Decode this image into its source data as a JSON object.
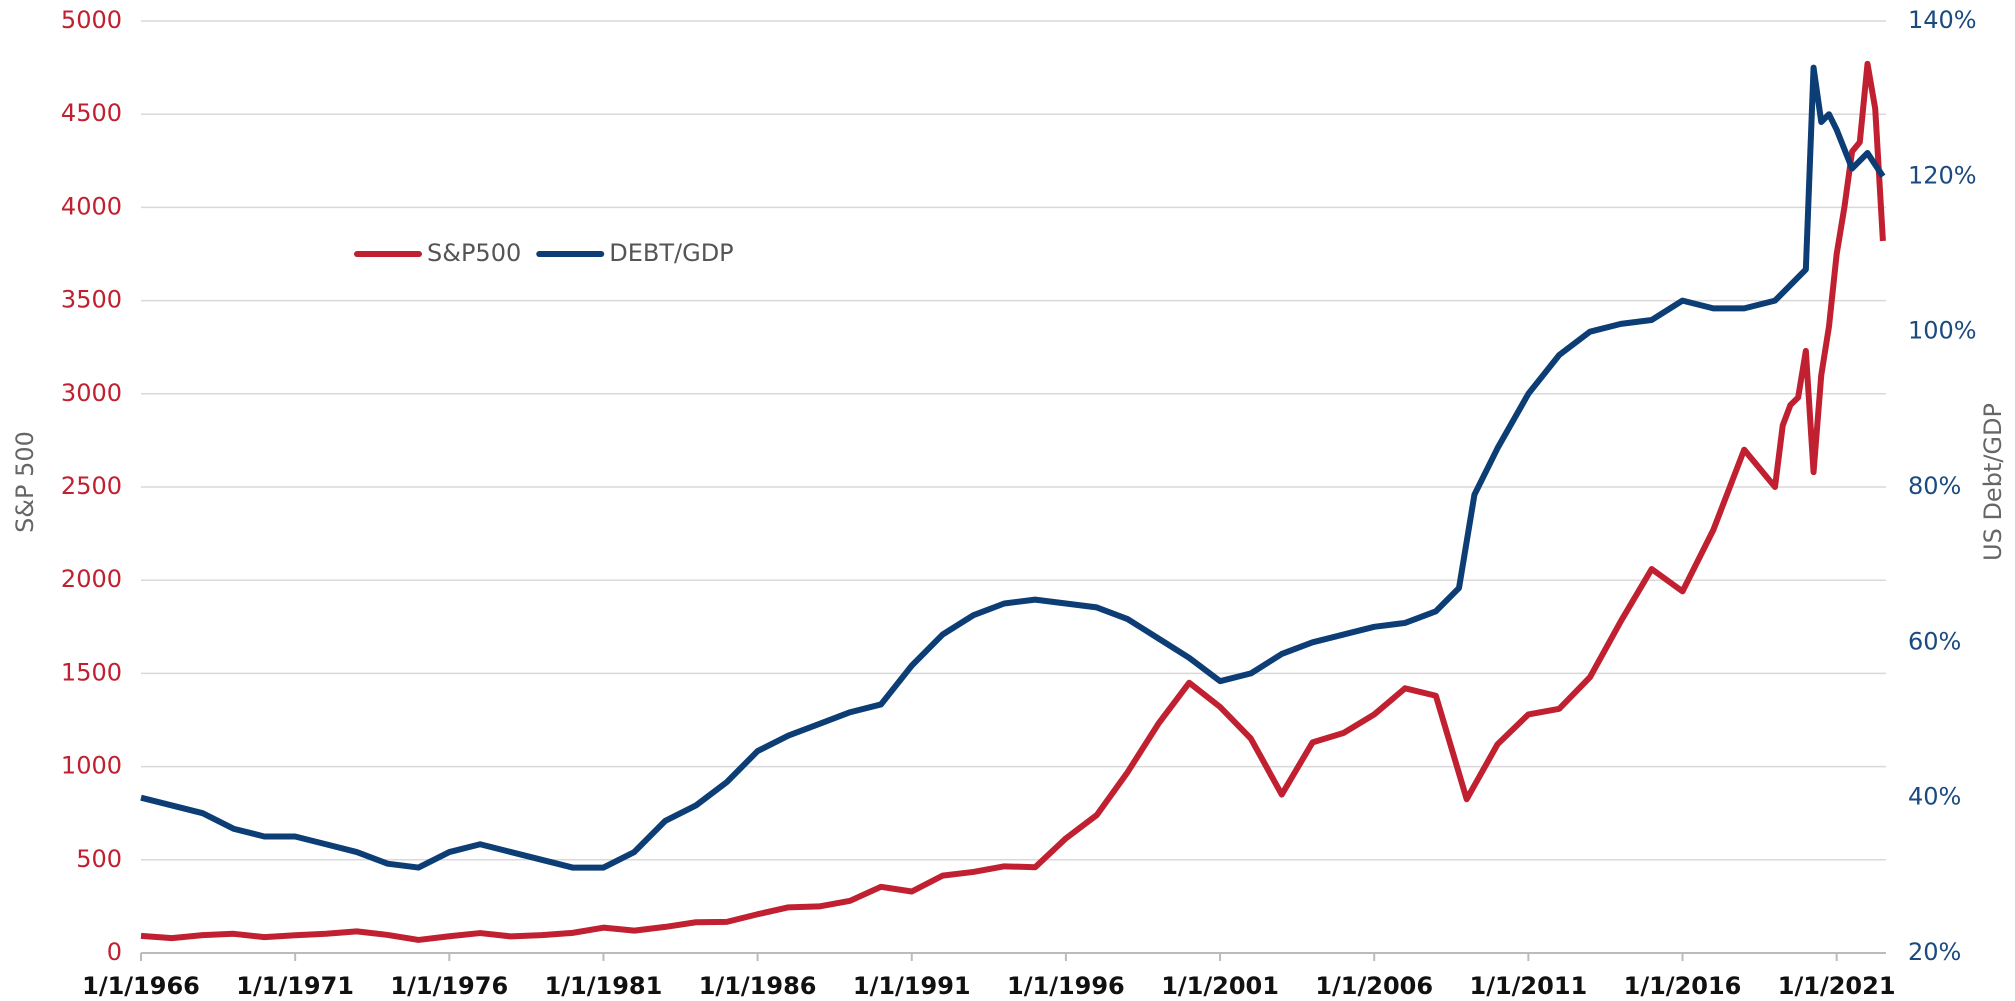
{
  "chart_data": {
    "type": "line",
    "ylabel": "S&P 500",
    "y2label": "US Debt/GDP",
    "xlim": [
      1966,
      2022.6
    ],
    "xticks": [
      {
        "value": 1966,
        "label": "1/1/1966"
      },
      {
        "value": 1971,
        "label": "1/1/1971"
      },
      {
        "value": 1976,
        "label": "1/1/1976"
      },
      {
        "value": 1981,
        "label": "1/1/1981"
      },
      {
        "value": 1986,
        "label": "1/1/1986"
      },
      {
        "value": 1991,
        "label": "1/1/1991"
      },
      {
        "value": 1996,
        "label": "1/1/1996"
      },
      {
        "value": 2001,
        "label": "1/1/2001"
      },
      {
        "value": 2006,
        "label": "1/1/2006"
      },
      {
        "value": 2011,
        "label": "1/1/2011"
      },
      {
        "value": 2016,
        "label": "1/1/2016"
      },
      {
        "value": 2021,
        "label": "1/1/2021"
      }
    ],
    "ylim": [
      0,
      5000
    ],
    "yticks": [
      0,
      500,
      1000,
      1500,
      2000,
      2500,
      3000,
      3500,
      4000,
      4500,
      5000
    ],
    "y2lim": [
      20,
      140
    ],
    "y2ticks": [
      {
        "value": 20,
        "label": "20%"
      },
      {
        "value": 40,
        "label": "40%"
      },
      {
        "value": 60,
        "label": "60%"
      },
      {
        "value": 80,
        "label": "80%"
      },
      {
        "value": 100,
        "label": "100%"
      },
      {
        "value": 120,
        "label": "120%"
      },
      {
        "value": 140,
        "label": "140%"
      }
    ],
    "grid": true,
    "legend": "upper left",
    "series": [
      {
        "name": "S&P500",
        "color": "#c0202f",
        "axis": "y",
        "x": [
          1966,
          1967,
          1968,
          1969,
          1970,
          1971,
          1972,
          1973,
          1974,
          1975,
          1976,
          1977,
          1978,
          1979,
          1980,
          1981,
          1982,
          1983,
          1984,
          1985,
          1986,
          1987,
          1988,
          1989,
          1990,
          1991,
          1992,
          1993,
          1994,
          1995,
          1996,
          1997,
          1998,
          1999,
          2000,
          2001,
          2002,
          2003,
          2004,
          2005,
          2006,
          2007,
          2008,
          2009,
          2010,
          2011,
          2012,
          2013,
          2014,
          2015,
          2016,
          2017,
          2018,
          2019,
          2019.25,
          2019.5,
          2019.75,
          2020,
          2020.25,
          2020.5,
          2020.75,
          2021,
          2021.25,
          2021.5,
          2021.75,
          2022,
          2022.25,
          2022.5
        ],
        "values": [
          92,
          80,
          96,
          103,
          85,
          95,
          103,
          116,
          97,
          70,
          90,
          107,
          89,
          96,
          108,
          136,
          120,
          140,
          165,
          167,
          208,
          245,
          250,
          280,
          355,
          330,
          415,
          435,
          465,
          460,
          615,
          740,
          970,
          1230,
          1450,
          1320,
          1150,
          850,
          1130,
          1180,
          1280,
          1420,
          1380,
          825,
          1120,
          1280,
          1310,
          1480,
          1780,
          2060,
          1940,
          2270,
          2700,
          2500,
          2830,
          2940,
          2980,
          3230,
          2580,
          3100,
          3360,
          3750,
          4000,
          4300,
          4350,
          4770,
          4530,
          3820
        ]
      },
      {
        "name": "DEBT/GDP",
        "color": "#0d3d75",
        "axis": "y2",
        "x": [
          1966,
          1967,
          1968,
          1969,
          1970,
          1971,
          1972,
          1973,
          1974,
          1975,
          1976,
          1977,
          1978,
          1979,
          1980,
          1981,
          1982,
          1983,
          1984,
          1985,
          1986,
          1987,
          1988,
          1989,
          1990,
          1991,
          1992,
          1993,
          1994,
          1995,
          1996,
          1997,
          1998,
          1999,
          2000,
          2001,
          2002,
          2003,
          2004,
          2005,
          2006,
          2007,
          2008,
          2008.75,
          2009.25,
          2010,
          2011,
          2012,
          2013,
          2014,
          2015,
          2016,
          2017,
          2018,
          2019,
          2019.25,
          2019.75,
          2020,
          2020.25,
          2020.5,
          2020.75,
          2021,
          2021.5,
          2022,
          2022.5
        ],
        "values": [
          40,
          39,
          38,
          36,
          35,
          35,
          34,
          33,
          31.5,
          31,
          33,
          34,
          33,
          32,
          31,
          31,
          33,
          37,
          39,
          42,
          46,
          48,
          49.5,
          51,
          52,
          57,
          61,
          63.5,
          65,
          65.5,
          65,
          64.5,
          63,
          60.5,
          58,
          55,
          56,
          58.5,
          60,
          61,
          62,
          62.5,
          64,
          67,
          79,
          85,
          92,
          97,
          100,
          101,
          101.5,
          104,
          103,
          103,
          104,
          105,
          107,
          108,
          134,
          127,
          128,
          126,
          121,
          123,
          120
        ]
      }
    ]
  }
}
